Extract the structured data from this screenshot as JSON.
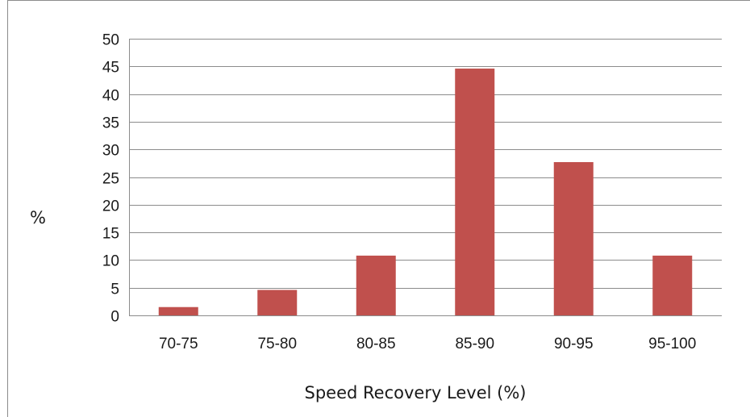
{
  "chart_data": {
    "type": "bar",
    "categories": [
      "70-75",
      "75-80",
      "80-85",
      "85-90",
      "90-95",
      "95-100"
    ],
    "values": [
      1.5,
      4.6,
      10.8,
      44.6,
      27.7,
      10.8
    ],
    "title": "",
    "xlabel": "Speed Recovery Level (%)",
    "ylabel": "%",
    "ylim": [
      0,
      50
    ],
    "yticks": [
      0,
      5,
      10,
      15,
      20,
      25,
      30,
      35,
      40,
      45,
      50
    ],
    "grid": true,
    "legend": "none",
    "bar_color": "#c0504d",
    "gridline_color": "#8c8c8c",
    "frame_color": "#8c8c8c"
  }
}
